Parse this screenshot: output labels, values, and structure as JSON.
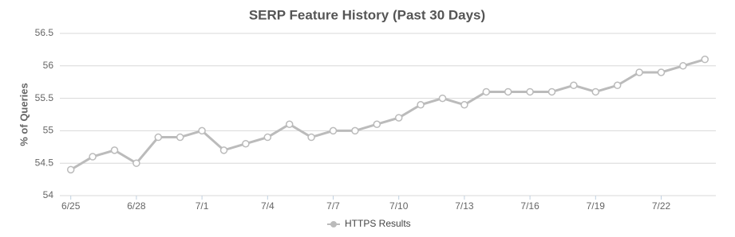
{
  "chart_data": {
    "type": "line",
    "title": "SERP Feature History (Past 30 Days)",
    "y_label": "% of Queries",
    "categories": [
      "6/25",
      null,
      null,
      "6/28",
      null,
      null,
      "7/1",
      null,
      null,
      "7/4",
      null,
      null,
      "7/7",
      null,
      null,
      "7/10",
      null,
      null,
      "7/13",
      null,
      null,
      "7/16",
      null,
      null,
      "7/19",
      null,
      null,
      "7/22",
      null,
      null
    ],
    "series": [
      {
        "name": "HTTPS Results",
        "color": "#bbbbbb",
        "values": [
          54.4,
          54.6,
          54.7,
          54.5,
          54.9,
          54.9,
          55.0,
          54.7,
          54.8,
          54.9,
          55.1,
          54.9,
          55.0,
          55.0,
          55.1,
          55.2,
          55.4,
          55.5,
          55.4,
          55.6,
          55.6,
          55.6,
          55.6,
          55.7,
          55.6,
          55.7,
          55.9,
          55.9,
          56.0,
          56.1
        ]
      }
    ],
    "ylim": [
      54,
      56.5
    ],
    "yticks": [
      54,
      54.5,
      55,
      55.5,
      56,
      56.5
    ],
    "grid": true,
    "legend": "bottom"
  }
}
